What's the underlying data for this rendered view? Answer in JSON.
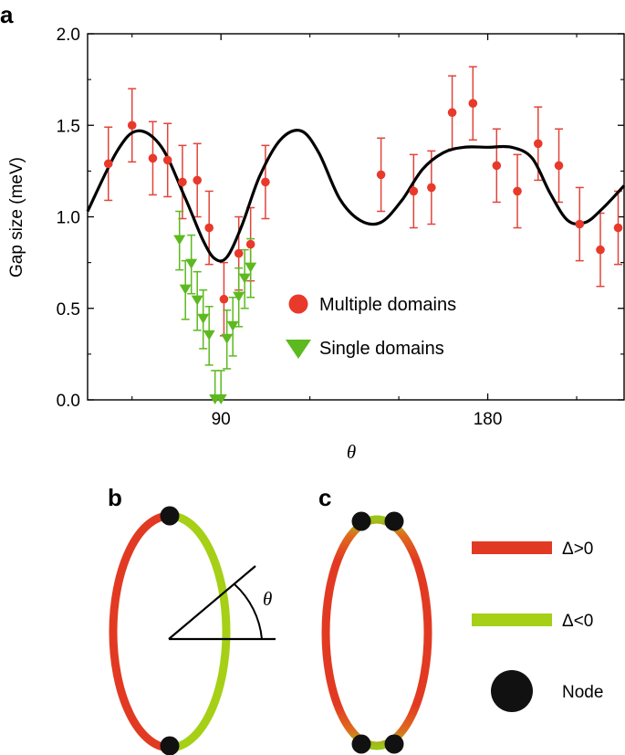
{
  "panels": {
    "a": "a",
    "b": "b",
    "c": "c"
  },
  "chart_data": {
    "type": "scatter",
    "title": "",
    "xlabel": "θ",
    "ylabel": "Gap size (meV)",
    "xlim": [
      45,
      226
    ],
    "ylim": [
      0,
      2.0
    ],
    "x_ticks": [
      90,
      180
    ],
    "x_tick_labels": [
      "90",
      "180"
    ],
    "y_ticks": [
      0,
      0.5,
      1.0,
      1.5,
      2.0
    ],
    "y_tick_labels": [
      "0.0",
      "0.5",
      "1.0",
      "1.5",
      "2.0"
    ],
    "legend_position": "center-right",
    "series": [
      {
        "name": "Multiple domains",
        "marker": "circle",
        "color": "#e8392b",
        "error_color": "#e0453a",
        "points": [
          {
            "x": 52,
            "y": 1.29,
            "err": 0.2
          },
          {
            "x": 60,
            "y": 1.5,
            "err": 0.2
          },
          {
            "x": 67,
            "y": 1.32,
            "err": 0.2
          },
          {
            "x": 72,
            "y": 1.31,
            "err": 0.2
          },
          {
            "x": 77,
            "y": 1.19,
            "err": 0.2
          },
          {
            "x": 82,
            "y": 1.2,
            "err": 0.2
          },
          {
            "x": 86,
            "y": 0.94,
            "err": 0.2
          },
          {
            "x": 91,
            "y": 0.55,
            "err": 0.2
          },
          {
            "x": 96,
            "y": 0.8,
            "err": 0.2
          },
          {
            "x": 100,
            "y": 0.85,
            "err": 0.2
          },
          {
            "x": 105,
            "y": 1.19,
            "err": 0.2
          },
          {
            "x": 144,
            "y": 1.23,
            "err": 0.2
          },
          {
            "x": 155,
            "y": 1.14,
            "err": 0.2
          },
          {
            "x": 161,
            "y": 1.16,
            "err": 0.2
          },
          {
            "x": 168,
            "y": 1.57,
            "err": 0.2
          },
          {
            "x": 175,
            "y": 1.62,
            "err": 0.2
          },
          {
            "x": 183,
            "y": 1.28,
            "err": 0.2
          },
          {
            "x": 190,
            "y": 1.14,
            "err": 0.2
          },
          {
            "x": 197,
            "y": 1.4,
            "err": 0.2
          },
          {
            "x": 204,
            "y": 1.28,
            "err": 0.2
          },
          {
            "x": 211,
            "y": 0.96,
            "err": 0.2
          },
          {
            "x": 218,
            "y": 0.82,
            "err": 0.2
          },
          {
            "x": 224,
            "y": 0.94,
            "err": 0.2
          }
        ]
      },
      {
        "name": "Single domains",
        "marker": "triangle-down",
        "color": "#5cb91f",
        "error_color": "#5cb91f",
        "points": [
          {
            "x": 76,
            "y": 0.87,
            "err": 0.16
          },
          {
            "x": 78,
            "y": 0.6,
            "err": 0.16
          },
          {
            "x": 80,
            "y": 0.74,
            "err": 0.16
          },
          {
            "x": 82,
            "y": 0.54,
            "err": 0.16
          },
          {
            "x": 84,
            "y": 0.44,
            "err": 0.16
          },
          {
            "x": 86,
            "y": 0.35,
            "err": 0.16
          },
          {
            "x": 88,
            "y": 0.0,
            "err": 0.16
          },
          {
            "x": 90,
            "y": 0.0,
            "err": 0.16
          },
          {
            "x": 92,
            "y": 0.33,
            "err": 0.16
          },
          {
            "x": 94,
            "y": 0.4,
            "err": 0.16
          },
          {
            "x": 96,
            "y": 0.56,
            "err": 0.16
          },
          {
            "x": 98,
            "y": 0.66,
            "err": 0.16
          },
          {
            "x": 100,
            "y": 0.72,
            "err": 0.16
          }
        ]
      }
    ],
    "fit_curve": {
      "color": "#000000",
      "x": [
        45,
        55,
        62,
        70,
        78,
        84,
        88,
        92,
        97,
        103,
        110,
        117,
        123,
        130,
        137,
        144,
        151,
        158,
        165,
        172,
        180,
        188,
        195,
        201,
        207,
        213,
        219,
        226
      ],
      "y": [
        1.03,
        1.36,
        1.47,
        1.38,
        1.1,
        0.87,
        0.77,
        0.78,
        0.95,
        1.22,
        1.42,
        1.47,
        1.35,
        1.1,
        0.98,
        0.97,
        1.09,
        1.26,
        1.35,
        1.38,
        1.38,
        1.38,
        1.32,
        1.13,
        0.98,
        0.97,
        1.05,
        1.17
      ]
    }
  },
  "diagram": {
    "theta_label": "θ",
    "legend": [
      {
        "label": "Δ>0",
        "color": "#e23a22"
      },
      {
        "label": "Δ<0",
        "color": "#a5d016"
      },
      {
        "label": "Node",
        "color": "#111111"
      }
    ]
  }
}
